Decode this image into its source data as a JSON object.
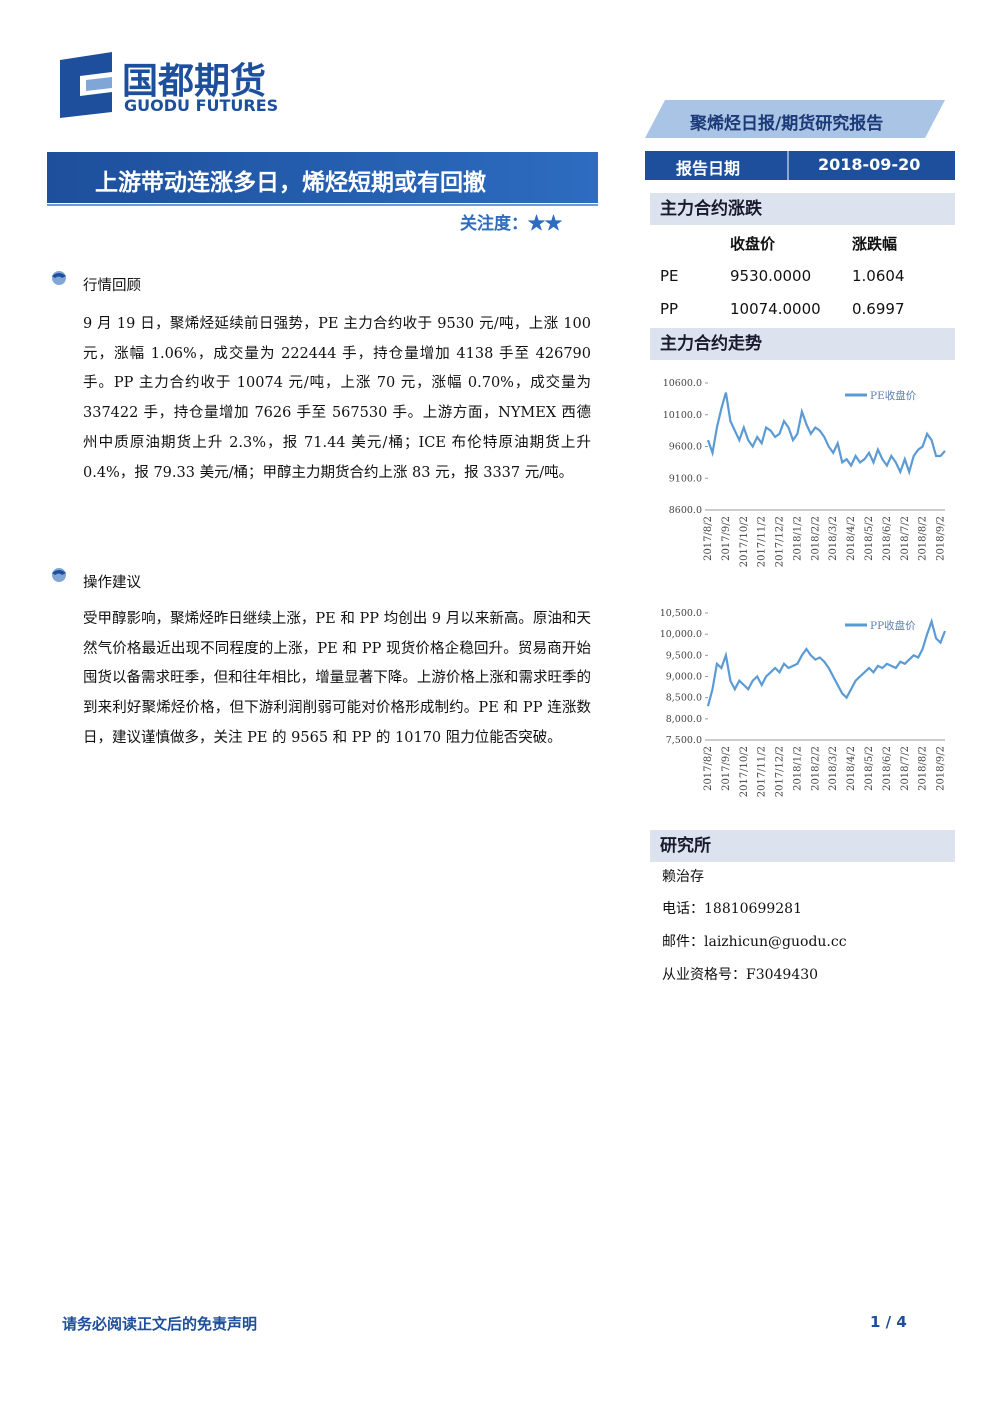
{
  "header": {
    "logo_cn": "国都期货",
    "logo_en": "GUODU FUTURES",
    "banner": "聚烯烃日报/期货研究报告",
    "date_label": "报告日期",
    "date_value": "2018-09-20"
  },
  "title": "上游带动连涨多日，烯烃短期或有回撤",
  "attention": "关注度：★★",
  "sections": [
    {
      "heading": "行情回顾",
      "text": "9 月 19 日，聚烯烃延续前日强势，PE 主力合约收于 9530 元/吨，上涨 100 元，涨幅 1.06%，成交量为 222444 手，持仓量增加 4138 手至 426790 手。PP 主力合约收于 10074 元/吨，上涨 70 元，涨幅 0.70%，成交量为 337422 手，持仓量增加 7626 手至 567530 手。上游方面，NYMEX 西德州中质原油期货上升 2.3%，报 71.44 美元/桶；ICE 布伦特原油期货上升 0.4%，报 79.33 美元/桶；甲醇主力期货合约上涨 83 元，报 3337 元/吨。"
    },
    {
      "heading": "操作建议",
      "text": "受甲醇影响，聚烯烃昨日继续上涨，PE 和 PP 均创出 9 月以来新高。原油和天然气价格最近出现不同程度的上涨，PE 和 PP 现货价格企稳回升。贸易商开始囤货以备需求旺季，但和往年相比，增量显著下降。上游价格上涨和需求旺季的到来利好聚烯烃价格，但下游利润削弱可能对价格形成制约。PE 和 PP 连涨数日，建议谨慎做多，关注 PE 的 9565 和 PP 的 10170 阻力位能否突破。"
    }
  ],
  "sidebar": {
    "table_title": "主力合约涨跌",
    "table": {
      "header": [
        "收盘价",
        "涨跌幅"
      ],
      "rows": [
        [
          "PE",
          "9530.0000",
          "1.0604"
        ],
        [
          "PP",
          "10074.0000",
          "0.6997"
        ]
      ]
    },
    "trend_title": "主力合约走势",
    "research_title": "研究所",
    "contacts": [
      "赖治存",
      "电话：18810699281",
      "邮件：laizhicun@guodu.cc",
      "从业资格号：F3049430"
    ]
  },
  "chart_data": [
    {
      "type": "line",
      "legend": "upper right",
      "categories": [
        "2017/8/2",
        null,
        null,
        null,
        "2017/9/2",
        null,
        null,
        null,
        "2017/10/2",
        null,
        null,
        null,
        "2017/11/2",
        null,
        null,
        null,
        "2017/12/2",
        null,
        null,
        null,
        "2018/1/2",
        null,
        null,
        null,
        "2018/2/2",
        null,
        null,
        null,
        "2018/3/2",
        null,
        null,
        null,
        "2018/4/2",
        null,
        null,
        null,
        "2018/5/2",
        null,
        null,
        null,
        "2018/6/2",
        null,
        null,
        null,
        "2018/7/2",
        null,
        null,
        null,
        "2018/8/2",
        null,
        null,
        null,
        "2018/9/2",
        null
      ],
      "series": [
        {
          "name": "PE收盘价",
          "color": "#5b9bd5",
          "values": [
            9700,
            9500,
            9900,
            10200,
            10450,
            10000,
            9850,
            9700,
            9900,
            9700,
            9600,
            9750,
            9650,
            9900,
            9850,
            9750,
            9800,
            10000,
            9900,
            9700,
            9800,
            10150,
            9950,
            9800,
            9900,
            9850,
            9750,
            9600,
            9500,
            9650,
            9350,
            9400,
            9300,
            9450,
            9350,
            9400,
            9500,
            9350,
            9550,
            9400,
            9300,
            9450,
            9350,
            9200,
            9400,
            9200,
            9450,
            9550,
            9600,
            9800,
            9700,
            9450,
            9450,
            9530
          ]
        }
      ],
      "ylim": [
        8600,
        10600
      ],
      "yticks": [
        {
          "value": 8600,
          "label": "8600.0"
        },
        {
          "value": 9100,
          "label": "9100.0"
        },
        {
          "value": 9600,
          "label": "9600.0"
        },
        {
          "value": 10100,
          "label": "10100.0"
        },
        {
          "value": 10600,
          "label": "10600.0"
        }
      ]
    },
    {
      "type": "line",
      "legend": "upper right",
      "categories": [
        "2017/8/2",
        null,
        null,
        null,
        "2017/9/2",
        null,
        null,
        null,
        "2017/10/2",
        null,
        null,
        null,
        "2017/11/2",
        null,
        null,
        null,
        "2017/12/2",
        null,
        null,
        null,
        "2018/1/2",
        null,
        null,
        null,
        "2018/2/2",
        null,
        null,
        null,
        "2018/3/2",
        null,
        null,
        null,
        "2018/4/2",
        null,
        null,
        null,
        "2018/5/2",
        null,
        null,
        null,
        "2018/6/2",
        null,
        null,
        null,
        "2018/7/2",
        null,
        null,
        null,
        "2018/8/2",
        null,
        null,
        null,
        "2018/9/2",
        null
      ],
      "series": [
        {
          "name": "PP收盘价",
          "color": "#5b9bd5",
          "values": [
            8300,
            8700,
            9300,
            9200,
            9500,
            8900,
            8700,
            8900,
            8800,
            8700,
            8900,
            9000,
            8800,
            9000,
            9100,
            9200,
            9100,
            9300,
            9200,
            9250,
            9300,
            9500,
            9650,
            9500,
            9400,
            9450,
            9350,
            9200,
            9000,
            8800,
            8600,
            8500,
            8700,
            8900,
            9000,
            9100,
            9200,
            9100,
            9250,
            9200,
            9300,
            9250,
            9200,
            9350,
            9300,
            9400,
            9500,
            9450,
            9650,
            10000,
            10300,
            9900,
            9800,
            10074
          ]
        }
      ],
      "ylim": [
        7500,
        10500
      ],
      "yticks": [
        {
          "value": 7500,
          "label": "7,500.0"
        },
        {
          "value": 8000,
          "label": "8,000.0"
        },
        {
          "value": 8500,
          "label": "8,500.0"
        },
        {
          "value": 9000,
          "label": "9,000.0"
        },
        {
          "value": 9500,
          "label": "9,500.0"
        },
        {
          "value": 10000,
          "label": "10,000.0"
        },
        {
          "value": 10500,
          "label": "10,500.0"
        }
      ]
    }
  ],
  "footer": {
    "disclaimer": "请务必阅读正文后的免责声明",
    "page": "1 / 4"
  }
}
